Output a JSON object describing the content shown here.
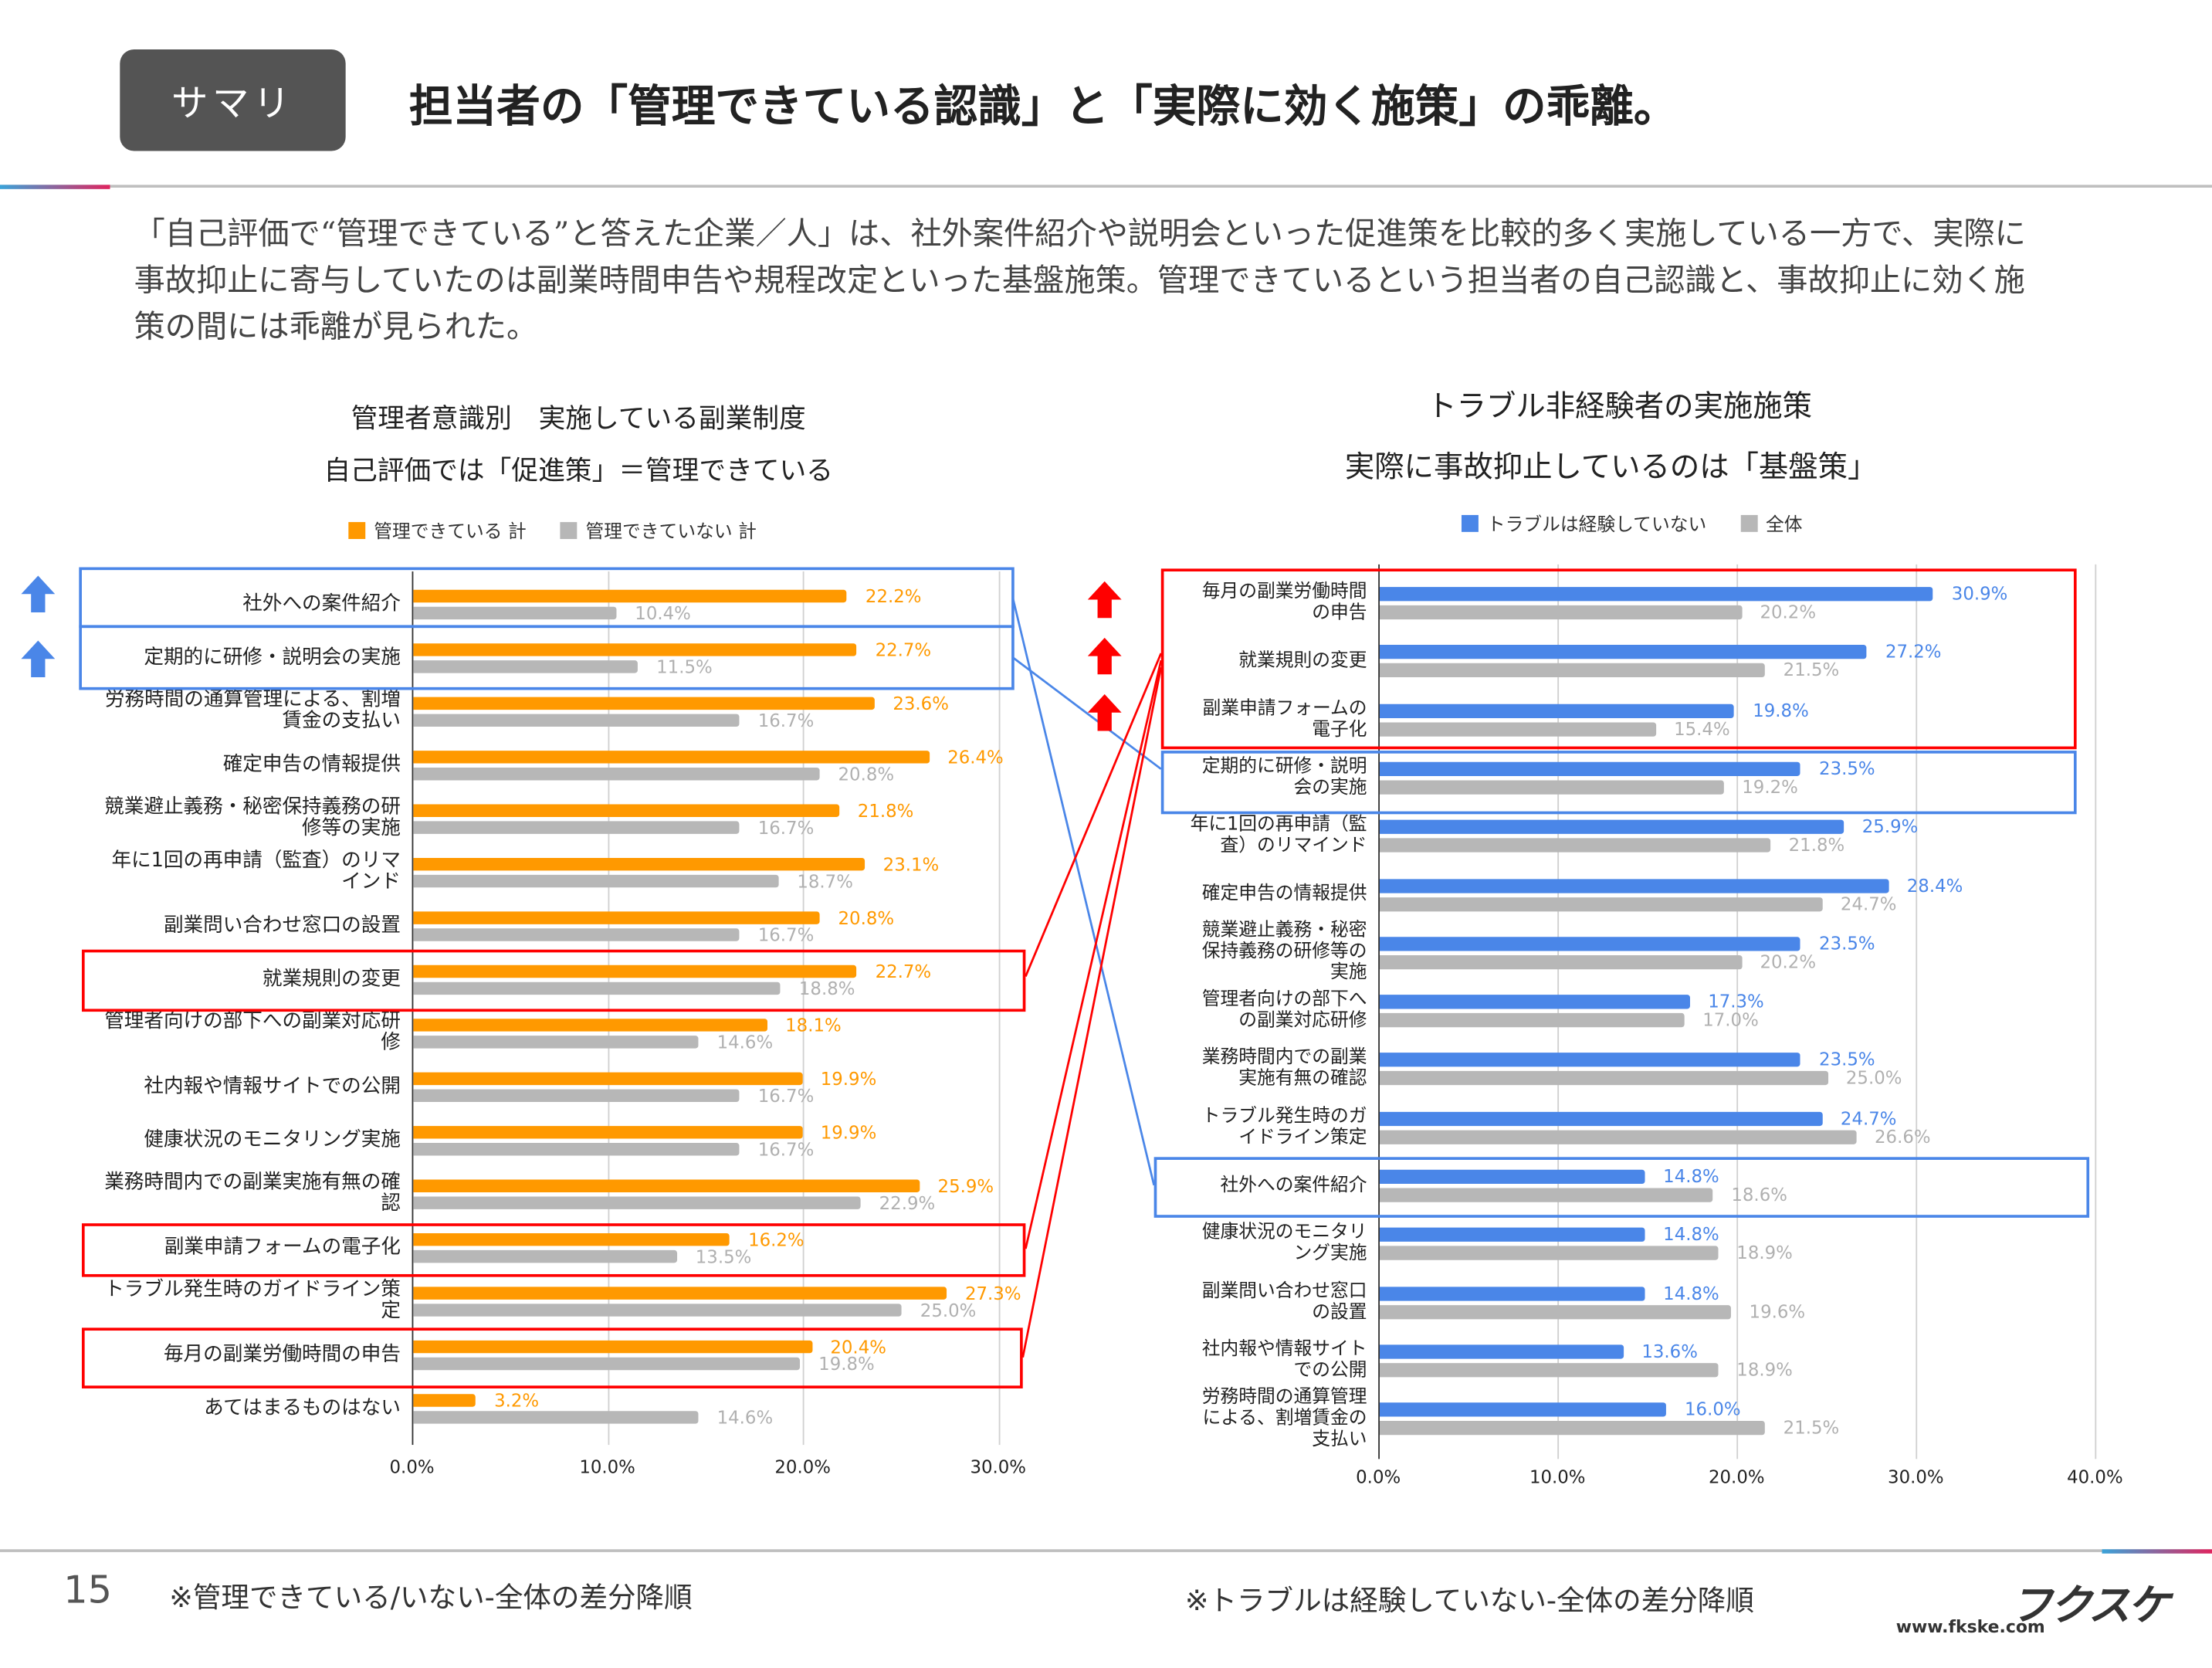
{
  "header": {
    "badge": "サマリ",
    "title": "担当者の「管理できている認識」と「実際に効く施策」の乖離。"
  },
  "summary": "「自己評価で“管理できている”と答えた企業／人」は、社外案件紹介や説明会といった促進策を比較的多く実施している一方で、実際に事故抑止に寄与していたのは副業時間申告や規程改定といった基盤施策。管理できているという担当者の自己認識と、事故抑止に効く施策の間には乖離が見られた。",
  "footer": {
    "page_number": "15",
    "note_left": "※管理できている/いない-全体の差分降順",
    "note_right": "※トラブルは経験していない-全体の差分降順",
    "logo": "フクスケ",
    "url": "www.fkske.com"
  },
  "colors": {
    "orange": "#ff9900",
    "blue": "#4a86e8",
    "gray": "#b7b7b7",
    "highlight_red": "#ff0000",
    "highlight_blue": "#4a86e8"
  },
  "chart_data": [
    {
      "type": "bar",
      "orientation": "horizontal",
      "title": "管理者意識別　実施している副業制度",
      "subtitle": "自己評価では「促進策」＝管理できている",
      "xlim": [
        0,
        30
      ],
      "ticks": [
        "0.0%",
        "10.0%",
        "20.0%",
        "30.0%"
      ],
      "grid": true,
      "legend_position": "top",
      "categories": [
        "社外への案件紹介",
        "定期的に研修・説明会の実施",
        "労務時間の通算管理による、割増賃金の支払い",
        "確定申告の情報提供",
        "競業避止義務・秘密保持義務の研修等の実施",
        "年に1回の再申請（監査）のリマインド",
        "副業問い合わせ窓口の設置",
        "就業規則の変更",
        "管理者向けの部下への副業対応研修",
        "社内報や情報サイトでの公開",
        "健康状況のモニタリング実施",
        "業務時間内での副業実施有無の確認",
        "副業申請フォームの電子化",
        "トラブル発生時のガイドライン策定",
        "毎月の副業労働時間の申告",
        "あてはまるものはない"
      ],
      "series": [
        {
          "name": "管理できている 計",
          "color": "#ff9900",
          "values": [
            22.2,
            22.7,
            23.6,
            26.4,
            21.8,
            23.1,
            20.8,
            22.7,
            18.1,
            19.9,
            19.9,
            25.9,
            16.2,
            27.3,
            20.4,
            3.2
          ]
        },
        {
          "name": "管理できていない 計",
          "color": "#b7b7b7",
          "values": [
            10.4,
            11.5,
            16.7,
            20.8,
            16.7,
            18.7,
            16.7,
            18.8,
            14.6,
            16.7,
            16.7,
            22.9,
            13.5,
            25.0,
            19.8,
            14.6
          ]
        }
      ],
      "highlight_blue": [
        "社外への案件紹介",
        "定期的に研修・説明会の実施"
      ],
      "highlight_red": [
        "就業規則の変更",
        "副業申請フォームの電子化",
        "毎月の副業労働時間の申告"
      ]
    },
    {
      "type": "bar",
      "orientation": "horizontal",
      "title": "トラブル非経験者の実施施策",
      "subtitle": "実際に事故抑止しているのは「基盤策」",
      "xlim": [
        0,
        40
      ],
      "ticks": [
        "0.0%",
        "10.0%",
        "20.0%",
        "30.0%",
        "40.0%"
      ],
      "grid": true,
      "legend_position": "top",
      "categories": [
        "毎月の副業労働時間の申告",
        "就業規則の変更",
        "副業申請フォームの電子化",
        "定期的に研修・説明会の実施",
        "年に1回の再申請（監査）のリマインド",
        "確定申告の情報提供",
        "競業避止義務・秘密保持義務の研修等の実施",
        "管理者向けの部下への副業対応研修",
        "業務時間内での副業実施有無の確認",
        "トラブル発生時のガイドライン策定",
        "社外への案件紹介",
        "健康状況のモニタリング実施",
        "副業問い合わせ窓口の設置",
        "社内報や情報サイトでの公開",
        "労務時間の通算管理による、割増賃金の支払い"
      ],
      "series": [
        {
          "name": "トラブルは経験していない",
          "color": "#4a86e8",
          "values": [
            30.9,
            27.2,
            19.8,
            23.5,
            25.9,
            28.4,
            23.5,
            17.3,
            23.5,
            24.7,
            14.8,
            14.8,
            14.8,
            13.6,
            16.0
          ]
        },
        {
          "name": "全体",
          "color": "#b7b7b7",
          "values": [
            20.2,
            21.5,
            15.4,
            19.2,
            21.8,
            24.7,
            20.2,
            17.0,
            25.0,
            26.6,
            18.6,
            18.9,
            19.6,
            18.9,
            21.5
          ]
        }
      ],
      "highlight_red": [
        "毎月の副業労働時間の申告",
        "就業規則の変更",
        "副業申請フォームの電子化"
      ],
      "highlight_blue": [
        "定期的に研修・説明会の実施",
        "社外への案件紹介"
      ]
    }
  ]
}
